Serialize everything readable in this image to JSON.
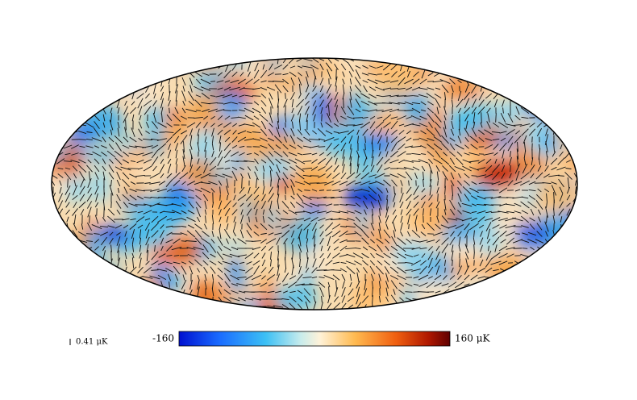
{
  "scale_bar": {
    "label": "0.41 μK"
  },
  "colorbar": {
    "min_label": "-160",
    "max_label": "160 μK"
  }
}
